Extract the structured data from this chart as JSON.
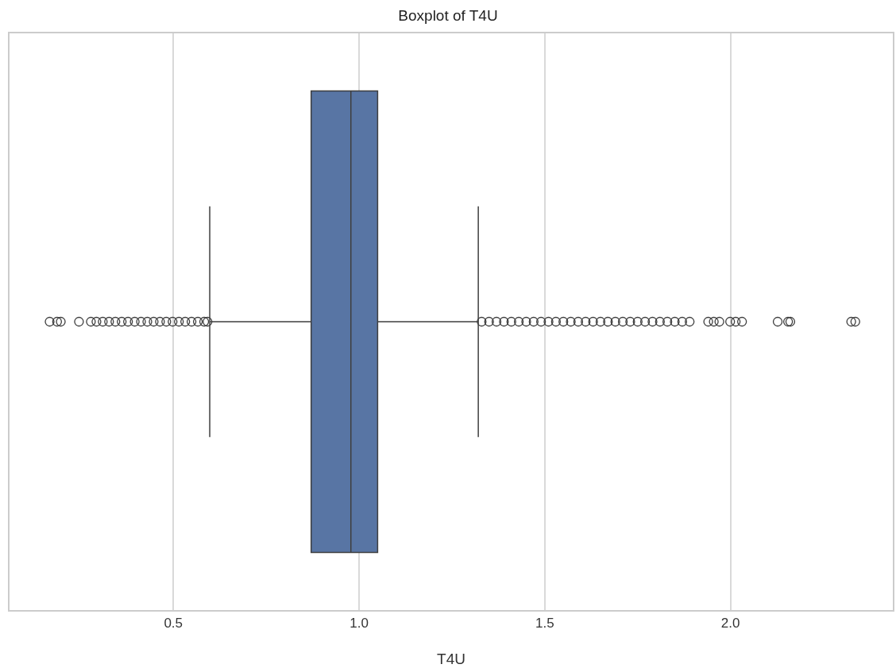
{
  "chart_data": {
    "type": "box",
    "title": "Boxplot of T4U",
    "xlabel": "T4U",
    "orientation": "horizontal",
    "categories": [
      null
    ],
    "color": "#5875a4",
    "boxes": [
      {
        "low": 0.598,
        "q1": 0.871,
        "median": 0.978,
        "q3": 1.05,
        "high": 1.321,
        "outliers": [
          0.167,
          0.187,
          0.197,
          0.246,
          0.278,
          0.293,
          0.31,
          0.327,
          0.344,
          0.361,
          0.378,
          0.396,
          0.413,
          0.43,
          0.447,
          0.464,
          0.481,
          0.498,
          0.515,
          0.532,
          0.549,
          0.566,
          0.583,
          0.592,
          1.33,
          1.35,
          1.37,
          1.39,
          1.41,
          1.43,
          1.45,
          1.47,
          1.49,
          1.51,
          1.53,
          1.55,
          1.57,
          1.59,
          1.61,
          1.63,
          1.65,
          1.67,
          1.69,
          1.71,
          1.73,
          1.75,
          1.77,
          1.79,
          1.81,
          1.83,
          1.85,
          1.87,
          1.89,
          1.94,
          1.955,
          1.97,
          1.999,
          2.014,
          2.031,
          2.127,
          2.155,
          2.161,
          2.325,
          2.336
        ]
      }
    ],
    "xlim": [
      0.059,
      2.437
    ],
    "xticks": [
      0.5,
      {
        "value": 1,
        "label": "1.0"
      },
      1.5,
      {
        "value": 2,
        "label": "2.0"
      }
    ],
    "grid": "x",
    "tick_labels": "x",
    "marker": "circle"
  }
}
